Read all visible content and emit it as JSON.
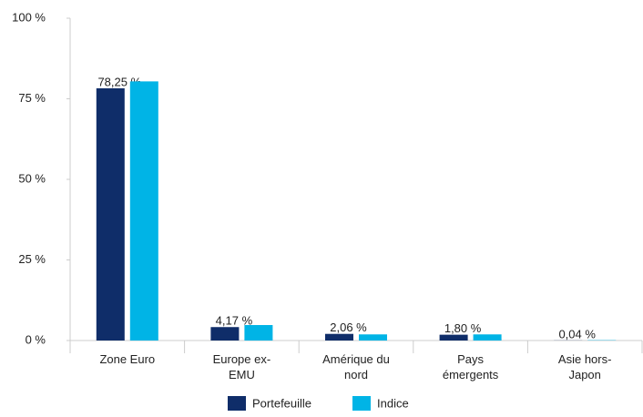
{
  "chart_data": {
    "type": "bar",
    "categories": [
      "Zone Euro",
      "Europe ex-EMU",
      "Amérique du nord",
      "Pays émergents",
      "Asie hors-Japon"
    ],
    "series": [
      {
        "name": "Portefeuille",
        "color": "#0f2d69",
        "values": [
          78.25,
          4.17,
          2.06,
          1.8,
          0.04
        ],
        "value_labels": [
          "78,25 %",
          "4,17 %",
          "2,06 %",
          "1,80 %",
          "0,04 %"
        ]
      },
      {
        "name": "Indice",
        "color": "#00b4e6",
        "values": [
          80.4,
          4.8,
          1.9,
          1.9,
          0.1
        ]
      }
    ],
    "ylim": [
      0,
      100
    ],
    "yticks": [
      {
        "value": 0,
        "label": "0 %"
      },
      {
        "value": 25,
        "label": "25 %"
      },
      {
        "value": 50,
        "label": "50 %"
      },
      {
        "value": 75,
        "label": "75 %"
      },
      {
        "value": 100,
        "label": "100 %"
      }
    ],
    "grid": false,
    "legend": "bottom"
  }
}
